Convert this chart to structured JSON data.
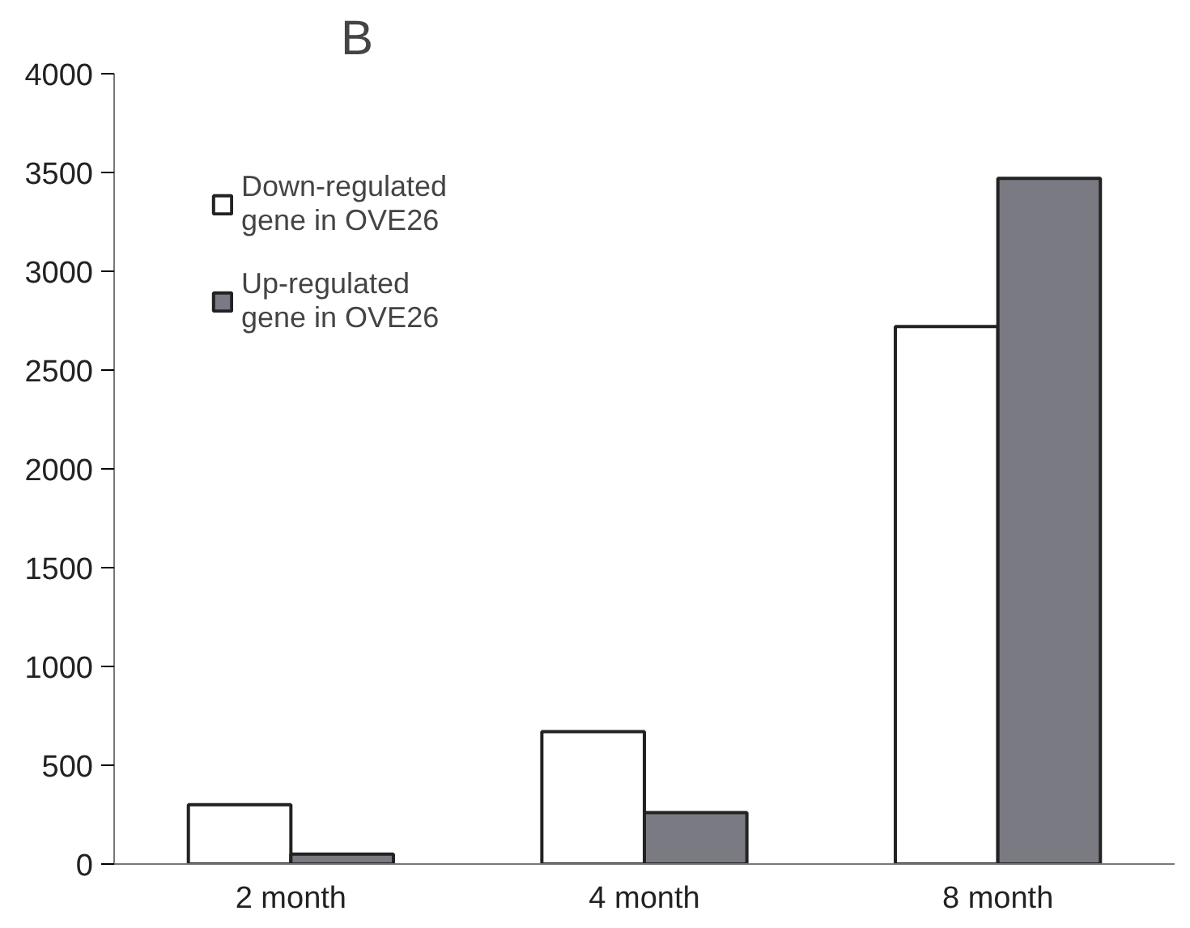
{
  "chart_data": {
    "type": "bar",
    "title": "B",
    "categories": [
      "2 month",
      "4 month",
      "8 month"
    ],
    "series": [
      {
        "name": "Down-regulated gene in OVE26",
        "color": "#ffffff",
        "values": [
          300,
          670,
          2720
        ]
      },
      {
        "name": "Up-regulated gene in OVE26",
        "color": "#7a7a82",
        "values": [
          50,
          260,
          3470
        ]
      }
    ],
    "ylim": [
      0,
      4000
    ],
    "yticks": [
      0,
      500,
      1000,
      1500,
      2000,
      2500,
      3000,
      3500,
      4000
    ],
    "grid": false,
    "legend": "top left"
  }
}
